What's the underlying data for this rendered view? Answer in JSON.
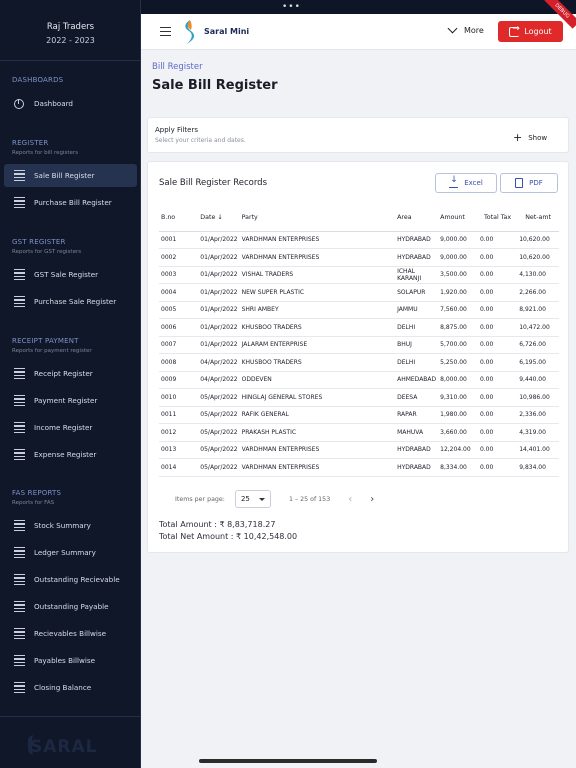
{
  "company": {
    "name": "Raj Traders",
    "year": "2022 - 2023"
  },
  "sidebar": {
    "sections": {
      "dashboards": {
        "title": "DASHBOARDS"
      },
      "register": {
        "title": "REGISTER",
        "sub": "Reports for bill registers"
      },
      "gst": {
        "title": "GST REGISTER",
        "sub": "Reports for GST registers"
      },
      "receipt": {
        "title": "RECEIPT PAYMENT",
        "sub": "Reports for payment register"
      },
      "fas": {
        "title": "FAS REPORTS",
        "sub": "Reports for FAS"
      }
    },
    "items": {
      "dashboard": "Dashboard",
      "sale_bill": "Sale Bill Register",
      "purchase_bill": "Purchase Bill Register",
      "gst_sale": "GST Sale Register",
      "purchase_sale": "Purchase Sale Register",
      "receipt": "Receipt Register",
      "payment": "Payment Register",
      "income": "Income Register",
      "expense": "Expense Register",
      "stock": "Stock Summary",
      "ledger": "Ledger Summary",
      "out_recv": "Outstanding Recievable",
      "out_pay": "Outstanding Payable",
      "recv_bill": "Recievables Billwise",
      "pay_bill": "Payables Billwise",
      "closing": "Closing Balance"
    },
    "footer_logo": "SARAL"
  },
  "header": {
    "brand": "Saral Mini",
    "more": "More",
    "logout": "Logout",
    "ribbon": "DEBUG"
  },
  "page": {
    "breadcrumb": "Bill Register",
    "title": "Sale Bill Register"
  },
  "filters": {
    "title": "Apply Filters",
    "subtitle": "Select your criteria and dates.",
    "show": "Show"
  },
  "records": {
    "title": "Sale Bill Register Records",
    "excel": "Excel",
    "pdf": "PDF",
    "columns": {
      "bno": "B.no",
      "date": "Date",
      "party": "Party",
      "area": "Area",
      "amount": "Amount",
      "tax": "Total Tax",
      "net": "Net-amt"
    },
    "rows": [
      {
        "bno": "0001",
        "date": "01/Apr/2022",
        "party": "VARDHMAN ENTERPRISES",
        "area": "HYDRABAD",
        "amount": "9,000.00",
        "tax": "0.00",
        "net": "10,620.00"
      },
      {
        "bno": "0002",
        "date": "01/Apr/2022",
        "party": "VARDHMAN ENTERPRISES",
        "area": "HYDRABAD",
        "amount": "9,000.00",
        "tax": "0.00",
        "net": "10,620.00"
      },
      {
        "bno": "0003",
        "date": "01/Apr/2022",
        "party": "VISHAL TRADERS",
        "area": "ICHAL KARANJI",
        "amount": "3,500.00",
        "tax": "0.00",
        "net": "4,130.00"
      },
      {
        "bno": "0004",
        "date": "01/Apr/2022",
        "party": "NEW SUPER PLASTIC",
        "area": "SOLAPUR",
        "amount": "1,920.00",
        "tax": "0.00",
        "net": "2,266.00"
      },
      {
        "bno": "0005",
        "date": "01/Apr/2022",
        "party": "SHRI AMBEY",
        "area": "JAMMU",
        "amount": "7,560.00",
        "tax": "0.00",
        "net": "8,921.00"
      },
      {
        "bno": "0006",
        "date": "01/Apr/2022",
        "party": "KHUSBOO TRADERS",
        "area": "DELHI",
        "amount": "8,875.00",
        "tax": "0.00",
        "net": "10,472.00"
      },
      {
        "bno": "0007",
        "date": "01/Apr/2022",
        "party": "JALARAM ENTERPRISE",
        "area": "BHUJ",
        "amount": "5,700.00",
        "tax": "0.00",
        "net": "6,726.00"
      },
      {
        "bno": "0008",
        "date": "04/Apr/2022",
        "party": "KHUSBOO TRADERS",
        "area": "DELHI",
        "amount": "5,250.00",
        "tax": "0.00",
        "net": "6,195.00"
      },
      {
        "bno": "0009",
        "date": "04/Apr/2022",
        "party": "ODDEVEN",
        "area": "AHMEDABAD",
        "amount": "8,000.00",
        "tax": "0.00",
        "net": "9,440.00"
      },
      {
        "bno": "0010",
        "date": "05/Apr/2022",
        "party": "HINGLAJ GENERAL STORES",
        "area": "DEESA",
        "amount": "9,310.00",
        "tax": "0.00",
        "net": "10,986.00"
      },
      {
        "bno": "0011",
        "date": "05/Apr/2022",
        "party": "RAFIK GENERAL",
        "area": "RAPAR",
        "amount": "1,980.00",
        "tax": "0.00",
        "net": "2,336.00"
      },
      {
        "bno": "0012",
        "date": "05/Apr/2022",
        "party": "PRAKASH PLASTIC",
        "area": "MAHUVA",
        "amount": "3,660.00",
        "tax": "0.00",
        "net": "4,319.00"
      },
      {
        "bno": "0013",
        "date": "05/Apr/2022",
        "party": "VARDHMAN ENTERPRISES",
        "area": "HYDRABAD",
        "amount": "12,204.00",
        "tax": "0.00",
        "net": "14,401.00"
      },
      {
        "bno": "0014",
        "date": "05/Apr/2022",
        "party": "VARDHMAN ENTERPRISES",
        "area": "HYDRABAD",
        "amount": "8,334.00",
        "tax": "0.00",
        "net": "9,834.00"
      }
    ],
    "pager": {
      "label": "Items per page:",
      "value": "25",
      "range": "1 – 25 of 153"
    },
    "total_amount": "Total Amount : ₹ 8,83,718.27",
    "total_net": "Total Net Amount : ₹ 10,42,548.00"
  },
  "colors": {
    "sidebar": "#0f1729",
    "accent": "#e02a2a",
    "link": "#5d6ac9"
  }
}
